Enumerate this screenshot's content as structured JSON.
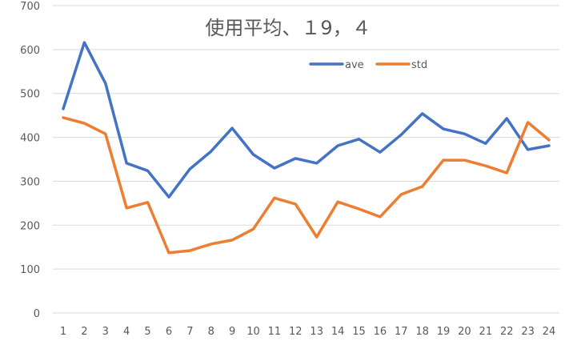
{
  "chart_data": {
    "type": "line",
    "title": "使用平均、１9，４",
    "xlabel": "",
    "ylabel": "",
    "x": [
      1,
      2,
      3,
      4,
      5,
      6,
      7,
      8,
      9,
      10,
      11,
      12,
      13,
      14,
      15,
      16,
      17,
      18,
      19,
      20,
      21,
      22,
      23,
      24
    ],
    "x_tick_labels": [
      "1",
      "2",
      "3",
      "4",
      "5",
      "6",
      "7",
      "8",
      "9",
      "10",
      "11",
      "12",
      "13",
      "14",
      "15",
      "16",
      "17",
      "18",
      "19",
      "20",
      "21",
      "22",
      "23",
      "24"
    ],
    "ylim": [
      0,
      700
    ],
    "y_ticks": [
      0,
      100,
      200,
      300,
      400,
      500,
      600,
      700
    ],
    "y_tick_labels": [
      "0",
      "100",
      "200",
      "300",
      "400",
      "500",
      "600",
      "700"
    ],
    "grid": true,
    "legend_position": "top-right",
    "series": [
      {
        "name": "ave",
        "color": "#4472C4",
        "values": [
          465,
          616,
          523,
          341,
          324,
          264,
          328,
          368,
          421,
          361,
          330,
          352,
          341,
          381,
          396,
          366,
          406,
          454,
          419,
          408,
          386,
          443,
          372,
          381
        ]
      },
      {
        "name": "std",
        "color": "#ED7D31",
        "values": [
          445,
          432,
          408,
          239,
          252,
          137,
          142,
          157,
          166,
          191,
          262,
          248,
          173,
          253,
          237,
          219,
          270,
          288,
          348,
          348,
          335,
          319,
          434,
          394
        ]
      }
    ]
  }
}
